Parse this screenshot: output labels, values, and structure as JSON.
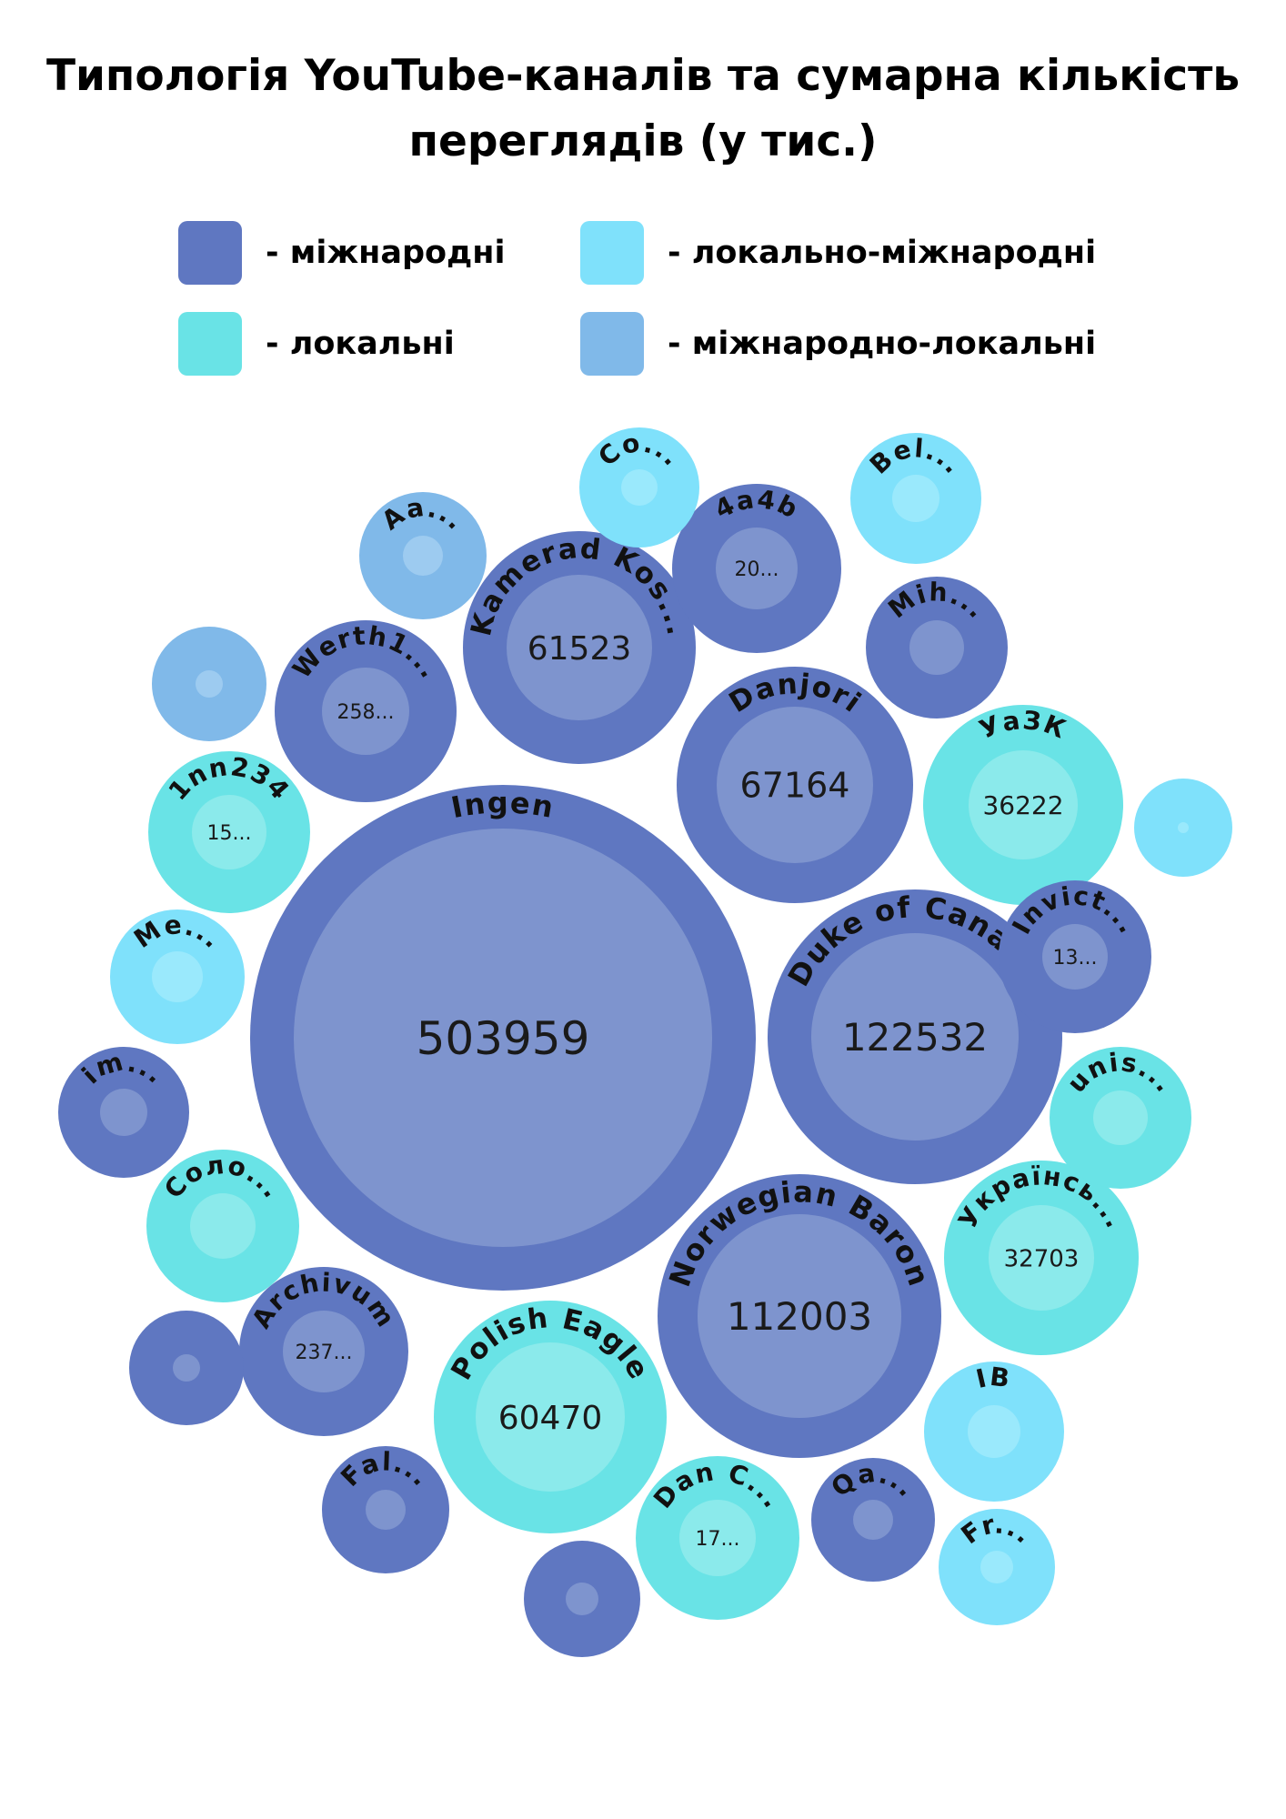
{
  "title_line1": "Типологія YouTube-каналів та сумарна кількість",
  "title_line2": "переглядів (у тис.)",
  "legend": [
    {
      "label": "- міжнародні",
      "color": "#5f77c1"
    },
    {
      "label": "- локально-міжнародні",
      "color": "#7fe1fb"
    },
    {
      "label": "- локальні",
      "color": "#69e3e6"
    },
    {
      "label": "- міжнародно-локальні",
      "color": "#80b9e9"
    }
  ],
  "colors": {
    "international": "#5f77c1",
    "local-international": "#7fe1fb",
    "local": "#69e3e6",
    "international-local": "#80b9e9"
  },
  "inner_colors": {
    "international": "#7e94ce",
    "local-international": "#9ae9fc",
    "local": "#8beaeb",
    "international-local": "#9dcbf0"
  },
  "chart_data": {
    "type": "bubble",
    "title": "Типологія YouTube-каналів та сумарна кількість переглядів (у тис.)",
    "series": [
      {
        "label": "Ingen",
        "value": 503959,
        "value_text": "503959",
        "category": "international"
      },
      {
        "label": "Duke of Canada",
        "value": 122532,
        "value_text": "122532",
        "category": "international"
      },
      {
        "label": "Norwegian Baron",
        "value": 112003,
        "value_text": "112003",
        "category": "international"
      },
      {
        "label": "Danjori",
        "value": 67164,
        "value_text": "67164",
        "category": "international"
      },
      {
        "label": "Kamerad Kos...",
        "value": 61523,
        "value_text": "61523",
        "category": "international"
      },
      {
        "label": "Polish Eagle",
        "value": 60470,
        "value_text": "60470",
        "category": "local"
      },
      {
        "label": "УаЗК",
        "value": 36222,
        "value_text": "36222",
        "category": "local"
      },
      {
        "label": "Українсь...",
        "value": 32703,
        "value_text": "32703",
        "category": "local"
      },
      {
        "label": "Werth1...",
        "value": null,
        "value_text": "258...",
        "category": "international"
      },
      {
        "label": "Archivum",
        "value": null,
        "value_text": "237...",
        "category": "international"
      },
      {
        "label": "4a4b",
        "value": null,
        "value_text": "20...",
        "category": "international"
      },
      {
        "label": "Dan C...",
        "value": null,
        "value_text": "17...",
        "category": "local"
      },
      {
        "label": "1nn234",
        "value": null,
        "value_text": "15...",
        "category": "local"
      },
      {
        "label": "Invict...",
        "value": null,
        "value_text": "13...",
        "category": "international"
      },
      {
        "label": "Mih...",
        "value": null,
        "value_text": "",
        "category": "international"
      },
      {
        "label": "Co...",
        "value": null,
        "value_text": "",
        "category": "local-international"
      },
      {
        "label": "Bel...",
        "value": null,
        "value_text": "",
        "category": "local-international"
      },
      {
        "label": "Aa...",
        "value": null,
        "value_text": "",
        "category": "international-local"
      },
      {
        "label": "",
        "value": null,
        "value_text": "",
        "category": "international-local"
      },
      {
        "label": "Me...",
        "value": null,
        "value_text": "",
        "category": "local-international"
      },
      {
        "label": "im...",
        "value": null,
        "value_text": "",
        "category": "international"
      },
      {
        "label": "Соло...",
        "value": null,
        "value_text": "",
        "category": "local"
      },
      {
        "label": "",
        "value": null,
        "value_text": "",
        "category": "international"
      },
      {
        "label": "Fal...",
        "value": null,
        "value_text": "",
        "category": "international"
      },
      {
        "label": "",
        "value": null,
        "value_text": "",
        "category": "international"
      },
      {
        "label": "Qa...",
        "value": null,
        "value_text": "",
        "category": "international"
      },
      {
        "label": "Fr...",
        "value": null,
        "value_text": "",
        "category": "local-international"
      },
      {
        "label": "IB",
        "value": null,
        "value_text": "",
        "category": "local-international"
      },
      {
        "label": "unis...",
        "value": null,
        "value_text": "",
        "category": "local"
      },
      {
        "label": "",
        "value": null,
        "value_text": "",
        "category": "local-international"
      }
    ]
  }
}
